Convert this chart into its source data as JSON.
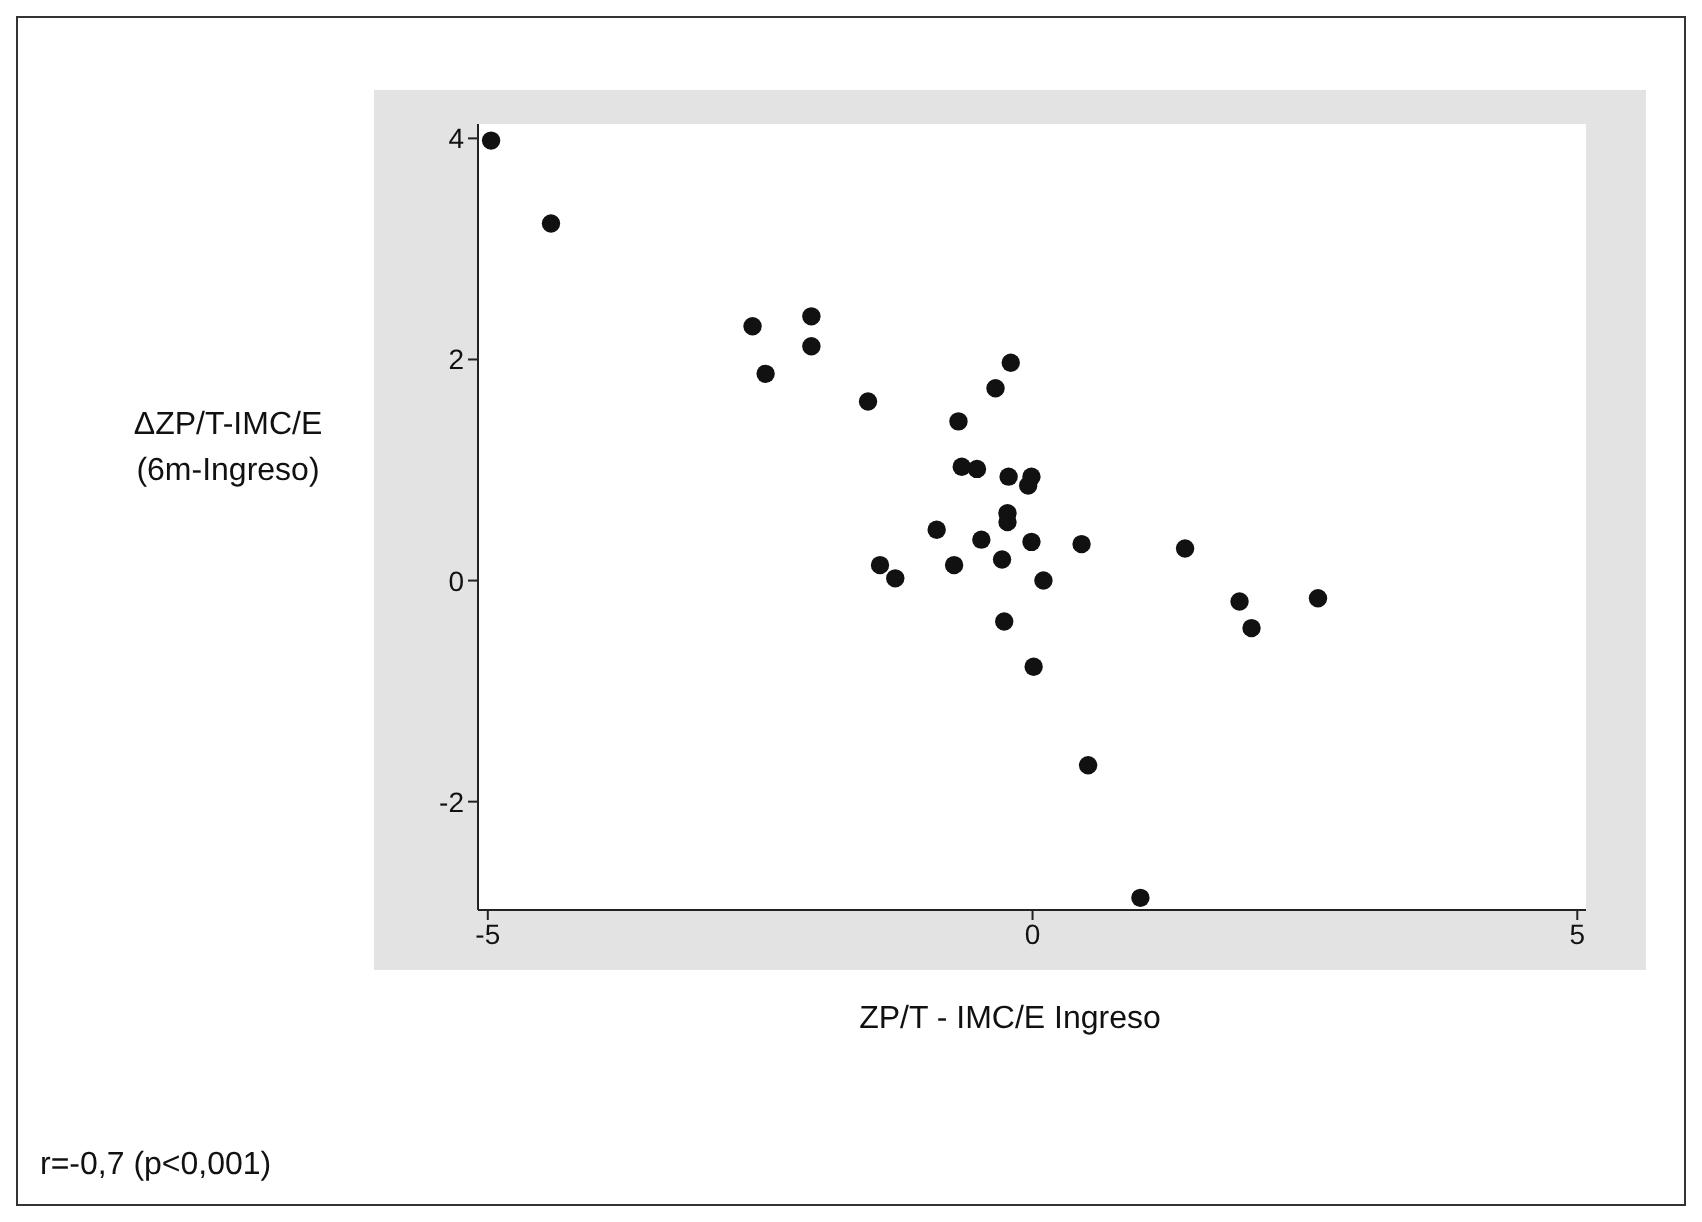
{
  "chart_data": {
    "type": "scatter",
    "xlabel": "ZP/T - IMC/E Ingreso",
    "ylabel": "ΔZP/T-IMC/E (6m-Ingreso)",
    "annotations": [
      "r=-0,7 (p<0,001)"
    ],
    "x": [
      -4.97,
      -4.42,
      -2.57,
      -2.03,
      -2.03,
      -2.45,
      -1.51,
      -0.2,
      -0.34,
      -0.68,
      -0.65,
      -0.51,
      -0.22,
      -0.01,
      -0.04,
      -0.23,
      -0.23,
      -0.88,
      -0.47,
      -0.01,
      0.45,
      1.4,
      -1.4,
      -1.26,
      -0.72,
      -0.28,
      0.1,
      -0.26,
      1.9,
      2.01,
      2.62,
      0.01,
      0.51,
      0.99
    ],
    "series": [
      {
        "color": "#111111",
        "values": [
          3.98,
          3.23,
          2.3,
          2.39,
          2.12,
          1.87,
          1.62,
          1.97,
          1.74,
          1.44,
          1.03,
          1.01,
          0.94,
          0.94,
          0.86,
          0.61,
          0.53,
          0.46,
          0.37,
          0.35,
          0.33,
          0.29,
          0.14,
          0.02,
          0.14,
          0.19,
          0.0,
          -0.37,
          -0.19,
          -0.43,
          -0.16,
          -0.78,
          -1.67,
          -2.87
        ]
      }
    ],
    "xlim": [
      -5.09,
      5.08
    ],
    "xticks": [
      -5,
      0,
      5
    ],
    "ylim": [
      -2.98,
      4.13
    ],
    "yticks": [
      -2,
      0,
      2,
      4
    ],
    "grid": false,
    "legend": false,
    "marker": "circle"
  }
}
